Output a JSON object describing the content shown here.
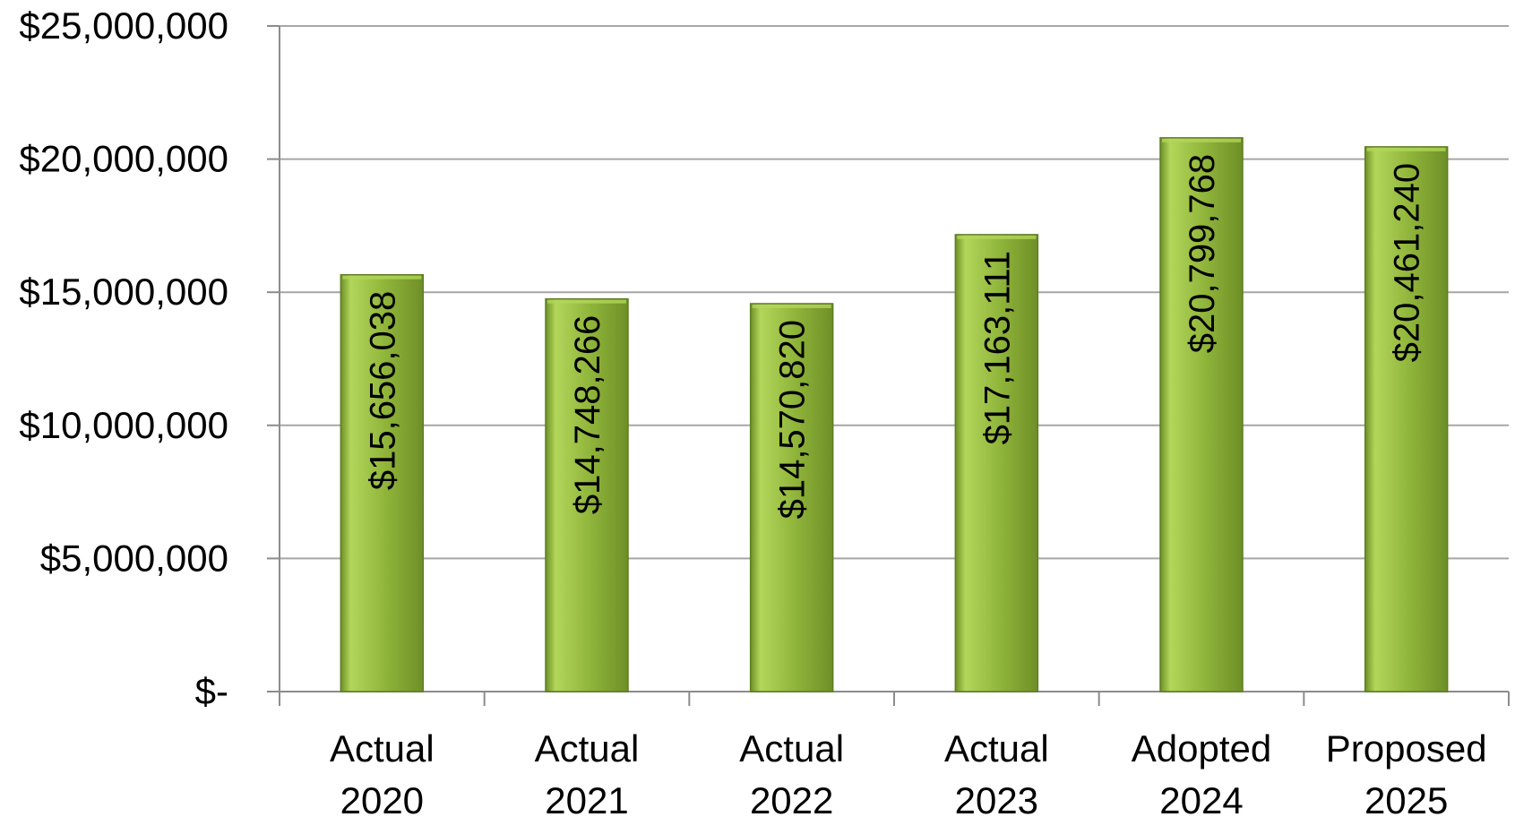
{
  "chart_data": {
    "type": "bar",
    "categories": [
      [
        "Actual",
        "2020"
      ],
      [
        "Actual",
        "2021"
      ],
      [
        "Actual",
        "2022"
      ],
      [
        "Actual",
        "2023"
      ],
      [
        "Adopted",
        "2024"
      ],
      [
        "Proposed",
        "2025"
      ]
    ],
    "values": [
      15656038,
      14748266,
      14570820,
      17163111,
      20799768,
      20461240
    ],
    "data_labels": [
      "$15,656,038",
      "$14,748,266",
      "$14,570,820",
      "$17,163,111",
      "$20,799,768",
      "$20,461,240"
    ],
    "ylim": [
      0,
      25000000
    ],
    "yticks": [
      0,
      5000000,
      10000000,
      15000000,
      20000000,
      25000000
    ],
    "ytick_labels": [
      "$-",
      "$5,000,000",
      "$10,000,000",
      "$15,000,000",
      "$20,000,000",
      "$25,000,000"
    ],
    "title": "",
    "xlabel": "",
    "ylabel": "",
    "grid": true,
    "legend": "none",
    "colors": {
      "bar_light": "#b2d65a",
      "bar_mid": "#8fb43a",
      "bar_dark": "#6e8f27",
      "bar_edge": "#5f7d22",
      "gridline": "#a6a6a6",
      "axis": "#8c8c8c",
      "text": "#000000"
    }
  }
}
